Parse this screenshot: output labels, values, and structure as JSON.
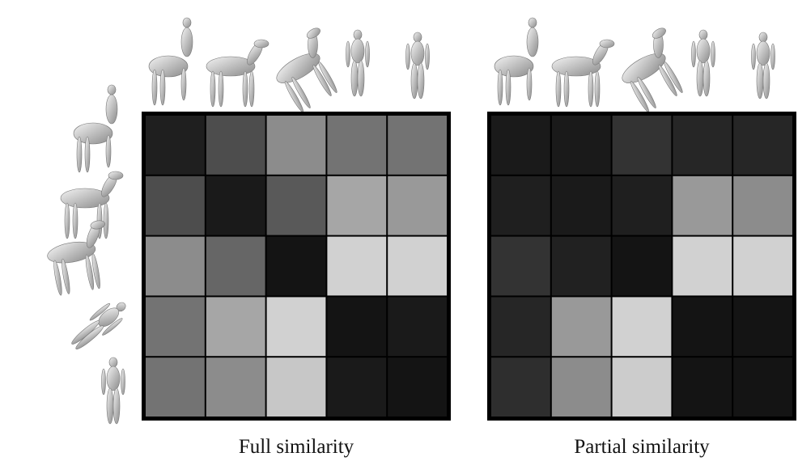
{
  "figures": [
    {
      "caption": "Full similarity",
      "matrix": [
        [
          0.12,
          0.3,
          0.55,
          0.45,
          0.45
        ],
        [
          0.3,
          0.1,
          0.35,
          0.65,
          0.6
        ],
        [
          0.55,
          0.4,
          0.08,
          0.82,
          0.82
        ],
        [
          0.45,
          0.65,
          0.82,
          0.08,
          0.1
        ],
        [
          0.45,
          0.55,
          0.78,
          0.1,
          0.08
        ]
      ]
    },
    {
      "caption": "Partial similarity",
      "matrix": [
        [
          0.1,
          0.1,
          0.2,
          0.15,
          0.15
        ],
        [
          0.12,
          0.1,
          0.12,
          0.6,
          0.55
        ],
        [
          0.2,
          0.13,
          0.08,
          0.82,
          0.82
        ],
        [
          0.15,
          0.6,
          0.82,
          0.08,
          0.08
        ],
        [
          0.18,
          0.55,
          0.8,
          0.08,
          0.08
        ]
      ]
    }
  ]
}
